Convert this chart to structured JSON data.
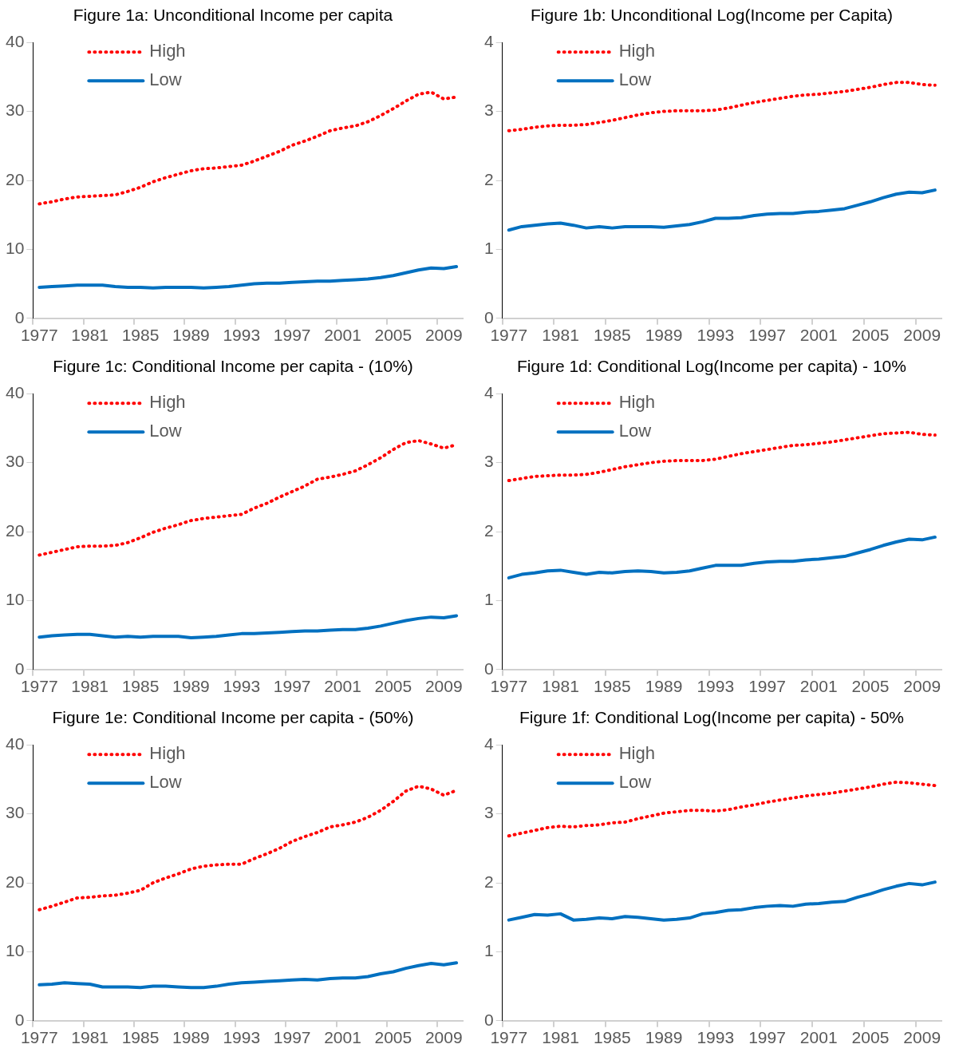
{
  "chart_data": [
    {
      "type": "line",
      "title": "Figure 1a: Unconditional Income per capita",
      "categories": [
        "1977",
        null,
        null,
        null,
        "1981",
        null,
        null,
        null,
        "1985",
        null,
        null,
        null,
        "1989",
        null,
        null,
        null,
        "1993",
        null,
        null,
        null,
        "1997",
        null,
        null,
        null,
        "2001",
        null,
        null,
        null,
        "2005",
        null,
        null,
        null,
        "2009",
        null
      ],
      "ylim": [
        0,
        40
      ],
      "yticks": [
        0,
        10,
        20,
        30,
        40
      ],
      "grid": false,
      "legend": "top left",
      "series": [
        {
          "name": "High",
          "color": "#ff0000",
          "line_style": "dotted",
          "values": [
            16.6,
            16.9,
            17.3,
            17.6,
            17.7,
            17.8,
            17.9,
            18.4,
            19.0,
            19.8,
            20.4,
            20.9,
            21.4,
            21.7,
            21.8,
            22.0,
            22.2,
            22.8,
            23.5,
            24.2,
            25.1,
            25.7,
            26.4,
            27.2,
            27.6,
            27.9,
            28.5,
            29.4,
            30.4,
            31.5,
            32.5,
            32.8,
            31.8,
            32.1
          ]
        },
        {
          "name": "Low",
          "color": "#0070c0",
          "line_style": "solid",
          "values": [
            4.5,
            4.6,
            4.7,
            4.8,
            4.8,
            4.8,
            4.6,
            4.5,
            4.5,
            4.4,
            4.5,
            4.5,
            4.5,
            4.4,
            4.5,
            4.6,
            4.8,
            5.0,
            5.1,
            5.1,
            5.2,
            5.3,
            5.4,
            5.4,
            5.5,
            5.6,
            5.7,
            5.9,
            6.2,
            6.6,
            7.0,
            7.3,
            7.2,
            7.5
          ]
        }
      ]
    },
    {
      "type": "line",
      "title": "Figure 1b: Unconditional Log(Income per Capita)",
      "categories": [
        "1977",
        null,
        null,
        null,
        "1981",
        null,
        null,
        null,
        "1985",
        null,
        null,
        null,
        "1989",
        null,
        null,
        null,
        "1993",
        null,
        null,
        null,
        "1997",
        null,
        null,
        null,
        "2001",
        null,
        null,
        null,
        "2005",
        null,
        null,
        null,
        "2009",
        null
      ],
      "ylim": [
        0,
        4
      ],
      "yticks": [
        0,
        1,
        2,
        3,
        4
      ],
      "grid": false,
      "legend": "top left",
      "series": [
        {
          "name": "High",
          "color": "#ff0000",
          "line_style": "dotted",
          "values": [
            2.72,
            2.74,
            2.77,
            2.79,
            2.8,
            2.8,
            2.81,
            2.84,
            2.87,
            2.91,
            2.95,
            2.98,
            3.0,
            3.01,
            3.01,
            3.01,
            3.02,
            3.05,
            3.09,
            3.13,
            3.16,
            3.19,
            3.22,
            3.24,
            3.25,
            3.27,
            3.29,
            3.32,
            3.35,
            3.39,
            3.42,
            3.42,
            3.39,
            3.38
          ]
        },
        {
          "name": "Low",
          "color": "#0070c0",
          "line_style": "solid",
          "values": [
            1.28,
            1.33,
            1.35,
            1.37,
            1.38,
            1.35,
            1.31,
            1.33,
            1.31,
            1.33,
            1.33,
            1.33,
            1.32,
            1.34,
            1.36,
            1.4,
            1.45,
            1.45,
            1.46,
            1.49,
            1.51,
            1.52,
            1.52,
            1.54,
            1.55,
            1.57,
            1.59,
            1.64,
            1.69,
            1.75,
            1.8,
            1.83,
            1.82,
            1.86
          ]
        }
      ]
    },
    {
      "type": "line",
      "title": "Figure 1c: Conditional Income per capita - (10%)",
      "categories": [
        "1977",
        null,
        null,
        null,
        "1981",
        null,
        null,
        null,
        "1985",
        null,
        null,
        null,
        "1989",
        null,
        null,
        null,
        "1993",
        null,
        null,
        null,
        "1997",
        null,
        null,
        null,
        "2001",
        null,
        null,
        null,
        "2005",
        null,
        null,
        null,
        "2009",
        null
      ],
      "ylim": [
        0,
        40
      ],
      "yticks": [
        0,
        10,
        20,
        30,
        40
      ],
      "grid": false,
      "legend": "top left",
      "series": [
        {
          "name": "High",
          "color": "#ff0000",
          "line_style": "dotted",
          "values": [
            16.6,
            17.0,
            17.4,
            17.8,
            17.9,
            17.9,
            18.0,
            18.4,
            19.1,
            19.9,
            20.5,
            21.0,
            21.6,
            21.9,
            22.1,
            22.3,
            22.5,
            23.4,
            24.1,
            25.0,
            25.8,
            26.6,
            27.6,
            27.9,
            28.3,
            28.8,
            29.7,
            30.7,
            31.9,
            32.9,
            33.2,
            32.7,
            32.1,
            32.6
          ]
        },
        {
          "name": "Low",
          "color": "#0070c0",
          "line_style": "solid",
          "values": [
            4.7,
            4.9,
            5.0,
            5.1,
            5.1,
            4.9,
            4.7,
            4.8,
            4.7,
            4.8,
            4.8,
            4.8,
            4.6,
            4.7,
            4.8,
            5.0,
            5.2,
            5.2,
            5.3,
            5.4,
            5.5,
            5.6,
            5.6,
            5.7,
            5.8,
            5.8,
            6.0,
            6.3,
            6.7,
            7.1,
            7.4,
            7.6,
            7.5,
            7.8
          ]
        }
      ]
    },
    {
      "type": "line",
      "title": "Figure 1d: Conditional Log(Income per capita) - 10%",
      "categories": [
        "1977",
        null,
        null,
        null,
        "1981",
        null,
        null,
        null,
        "1985",
        null,
        null,
        null,
        "1989",
        null,
        null,
        null,
        "1993",
        null,
        null,
        null,
        "1997",
        null,
        null,
        null,
        "2001",
        null,
        null,
        null,
        "2005",
        null,
        null,
        null,
        "2009",
        null
      ],
      "ylim": [
        0,
        4
      ],
      "yticks": [
        0,
        1,
        2,
        3,
        4
      ],
      "grid": false,
      "legend": "top left",
      "series": [
        {
          "name": "High",
          "color": "#ff0000",
          "line_style": "dotted",
          "values": [
            2.74,
            2.77,
            2.8,
            2.81,
            2.82,
            2.82,
            2.83,
            2.86,
            2.9,
            2.94,
            2.97,
            3.0,
            3.02,
            3.03,
            3.03,
            3.03,
            3.05,
            3.09,
            3.13,
            3.16,
            3.19,
            3.22,
            3.25,
            3.26,
            3.28,
            3.3,
            3.33,
            3.36,
            3.39,
            3.42,
            3.43,
            3.44,
            3.41,
            3.4
          ]
        },
        {
          "name": "Low",
          "color": "#0070c0",
          "line_style": "solid",
          "values": [
            1.33,
            1.38,
            1.4,
            1.43,
            1.44,
            1.41,
            1.38,
            1.41,
            1.4,
            1.42,
            1.43,
            1.42,
            1.4,
            1.41,
            1.43,
            1.47,
            1.51,
            1.51,
            1.51,
            1.54,
            1.56,
            1.57,
            1.57,
            1.59,
            1.6,
            1.62,
            1.64,
            1.69,
            1.74,
            1.8,
            1.85,
            1.89,
            1.88,
            1.92
          ]
        }
      ]
    },
    {
      "type": "line",
      "title": "Figure 1e: Conditional Income per capita - (50%)",
      "categories": [
        "1977",
        null,
        null,
        null,
        "1981",
        null,
        null,
        null,
        "1985",
        null,
        null,
        null,
        "1989",
        null,
        null,
        null,
        "1993",
        null,
        null,
        null,
        "1997",
        null,
        null,
        null,
        "2001",
        null,
        null,
        null,
        "2005",
        null,
        null,
        null,
        "2009",
        null
      ],
      "ylim": [
        0,
        40
      ],
      "yticks": [
        0,
        10,
        20,
        30,
        40
      ],
      "grid": false,
      "legend": "top left",
      "series": [
        {
          "name": "High",
          "color": "#ff0000",
          "line_style": "dotted",
          "values": [
            16.1,
            16.6,
            17.2,
            17.8,
            17.9,
            18.1,
            18.2,
            18.5,
            18.9,
            20.0,
            20.7,
            21.3,
            22.0,
            22.4,
            22.6,
            22.7,
            22.7,
            23.5,
            24.2,
            25.0,
            26.0,
            26.7,
            27.3,
            28.1,
            28.4,
            28.8,
            29.5,
            30.5,
            31.8,
            33.3,
            34.0,
            33.6,
            32.7,
            33.4
          ]
        },
        {
          "name": "Low",
          "color": "#0070c0",
          "line_style": "solid",
          "values": [
            5.2,
            5.3,
            5.5,
            5.4,
            5.3,
            4.9,
            4.9,
            4.9,
            4.8,
            5.0,
            5.0,
            4.9,
            4.8,
            4.8,
            5.0,
            5.3,
            5.5,
            5.6,
            5.7,
            5.8,
            5.9,
            6.0,
            5.9,
            6.1,
            6.2,
            6.2,
            6.4,
            6.8,
            7.1,
            7.6,
            8.0,
            8.3,
            8.1,
            8.4
          ]
        }
      ]
    },
    {
      "type": "line",
      "title": "Figure 1f: Conditional Log(Income per capita) - 50%",
      "categories": [
        "1977",
        null,
        null,
        null,
        "1981",
        null,
        null,
        null,
        "1985",
        null,
        null,
        null,
        "1989",
        null,
        null,
        null,
        "1993",
        null,
        null,
        null,
        "1997",
        null,
        null,
        null,
        "2001",
        null,
        null,
        null,
        "2005",
        null,
        null,
        null,
        "2009",
        null
      ],
      "ylim": [
        0,
        4
      ],
      "yticks": [
        0,
        1,
        2,
        3,
        4
      ],
      "grid": false,
      "legend": "top left",
      "series": [
        {
          "name": "High",
          "color": "#ff0000",
          "line_style": "dotted",
          "values": [
            2.68,
            2.72,
            2.76,
            2.8,
            2.82,
            2.81,
            2.83,
            2.84,
            2.87,
            2.88,
            2.93,
            2.97,
            3.01,
            3.03,
            3.05,
            3.05,
            3.04,
            3.06,
            3.1,
            3.13,
            3.17,
            3.2,
            3.23,
            3.26,
            3.28,
            3.3,
            3.33,
            3.36,
            3.39,
            3.43,
            3.46,
            3.45,
            3.43,
            3.41
          ]
        },
        {
          "name": "Low",
          "color": "#0070c0",
          "line_style": "solid",
          "values": [
            1.46,
            1.5,
            1.54,
            1.53,
            1.55,
            1.46,
            1.47,
            1.49,
            1.48,
            1.51,
            1.5,
            1.48,
            1.46,
            1.47,
            1.49,
            1.55,
            1.57,
            1.6,
            1.61,
            1.64,
            1.66,
            1.67,
            1.66,
            1.69,
            1.7,
            1.72,
            1.73,
            1.79,
            1.84,
            1.9,
            1.95,
            1.99,
            1.97,
            2.01
          ]
        }
      ]
    }
  ]
}
